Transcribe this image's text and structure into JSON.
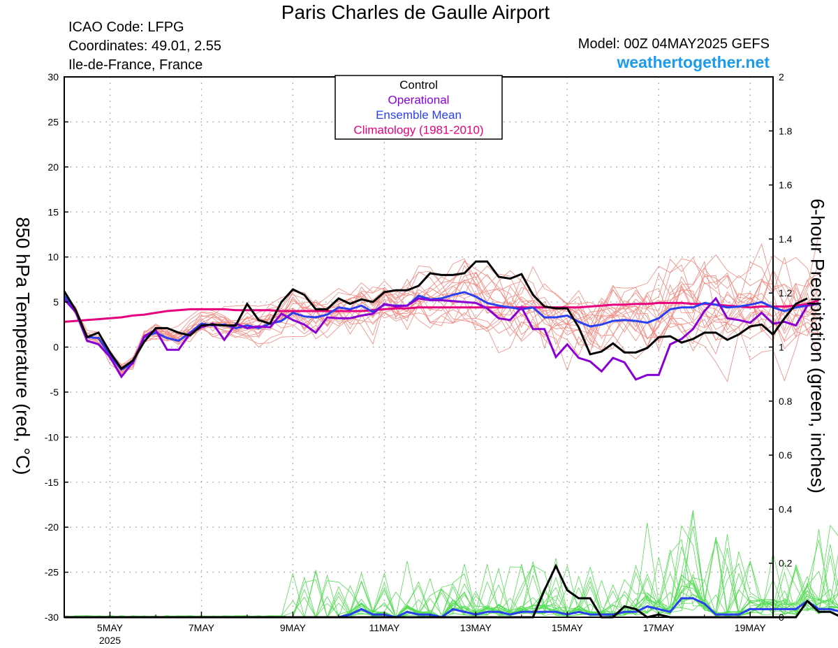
{
  "header": {
    "title": "Paris Charles de Gaulle Airport",
    "icao": "ICAO Code: LFPG",
    "coordinates": "Coordinates: 49.01, 2.55",
    "region": "Ile-de-France, France",
    "model": "Model: 00Z 04MAY2025 GEFS",
    "site": "weathertogether.net",
    "site_color": "#1a9bf0"
  },
  "chart_data": {
    "type": "line",
    "xlabel": "",
    "ylabel_left": "850 hPa Temperature (red, °C)",
    "ylabel_right": "6-hour Precipitation (green, inches)",
    "x_range": [
      0,
      62
    ],
    "x_unit": "6-hour steps from 00Z 04 May 2025",
    "ylim_left": [
      -30,
      30
    ],
    "ylim_right": [
      0,
      2
    ],
    "yticks_left": [
      "30",
      "25",
      "20",
      "15",
      "10",
      "5",
      "0",
      "-5",
      "-10",
      "-15",
      "-20",
      "-25",
      "-30"
    ],
    "yticks_right": [
      "2",
      "1.8",
      "1.6",
      "1.4",
      "1.2",
      "1",
      "0.8",
      "0.6",
      "0.4",
      "0.2",
      "0"
    ],
    "xticks": [
      {
        "label": "5MAY",
        "sub": "2025",
        "x": 4
      },
      {
        "label": "7MAY",
        "x": 12
      },
      {
        "label": "9MAY",
        "x": 20
      },
      {
        "label": "11MAY",
        "x": 28
      },
      {
        "label": "13MAY",
        "x": 36
      },
      {
        "label": "15MAY",
        "x": 44
      },
      {
        "label": "17MAY",
        "x": 52
      },
      {
        "label": "19MAY",
        "x": 60
      }
    ],
    "grid": true,
    "legend": {
      "position": "top-center",
      "entries": [
        {
          "name": "Control",
          "color": "#000000"
        },
        {
          "name": "Operational",
          "color": "#8a00d4"
        },
        {
          "name": "Ensemble Mean",
          "color": "#2a3ff0"
        },
        {
          "name": "Climatology (1981-2010)",
          "color": "#e5007e"
        }
      ]
    },
    "colors": {
      "control": "#000000",
      "operational": "#8a00d4",
      "mean": "#2a3ff0",
      "climatology": "#e5007e",
      "members_temp": "#f08a80",
      "members_precip": "#55dd55"
    },
    "series_temp": {
      "control": [
        6.2,
        4.1,
        1.1,
        1.6,
        -0.6,
        -2.4,
        -1.5,
        0.6,
        2.1,
        2.1,
        1.6,
        1.3,
        2.4,
        2.5,
        2.4,
        2.4,
        4.8,
        3.0,
        2.6,
        5.0,
        6.4,
        5.8,
        4.2,
        4.2,
        5.4,
        4.8,
        5.3,
        5.0,
        6.1,
        6.3,
        6.3,
        6.8,
        8.2,
        8.0,
        8.0,
        8.2,
        9.5,
        9.5,
        7.8,
        7.6,
        8.1,
        5.8,
        4.5,
        4.3,
        4.3,
        2.2,
        -0.8,
        -0.5,
        0.4,
        -0.6,
        -0.6,
        -0.1,
        1.1,
        1.2,
        0.5,
        0.9,
        1.6,
        1.6,
        0.8,
        1.4,
        2.3,
        2.5,
        1.4,
        3.2,
        4.8,
        5.4
      ],
      "operational": [
        5.3,
        3.9,
        0.7,
        0.3,
        -1.1,
        -3.3,
        -1.7,
        1.2,
        1.9,
        -0.3,
        -0.3,
        1.5,
        2.2,
        2.6,
        0.8,
        2.6,
        2.1,
        2.3,
        2.2,
        3.7,
        3.0,
        2.5,
        1.6,
        3.3,
        3.2,
        3.2,
        3.5,
        3.7,
        4.8,
        4.5,
        4.6,
        5.4,
        5.2,
        5.2,
        5.1,
        5.0,
        4.9,
        4.3,
        3.2,
        3.0,
        4.4,
        2.0,
        2.0,
        -1.1,
        0.3,
        -1.2,
        -1.6,
        -2.7,
        -1.2,
        -1.7,
        -3.6,
        -3.1,
        -3.1,
        0.3,
        0.9,
        2.0,
        4.0,
        5.4,
        3.2,
        3.0,
        2.7,
        3.8,
        2.6,
        2.8,
        2.4,
        4.6,
        4.9
      ],
      "mean": [
        5.7,
        4.0,
        1.1,
        1.0,
        -0.9,
        -2.5,
        -1.8,
        1.1,
        1.6,
        1.0,
        0.7,
        1.6,
        2.6,
        2.4,
        2.5,
        2.1,
        2.4,
        2.1,
        2.6,
        2.9,
        3.8,
        3.4,
        3.3,
        3.6,
        4.4,
        4.2,
        4.6,
        3.9,
        4.7,
        4.6,
        4.6,
        5.7,
        5.3,
        5.4,
        5.8,
        6.1,
        5.6,
        4.9,
        4.6,
        4.4,
        4.2,
        4.4,
        3.3,
        3.3,
        3.5,
        2.8,
        2.3,
        2.5,
        2.9,
        3.0,
        2.9,
        2.7,
        3.2,
        4.2,
        4.4,
        4.4,
        4.9,
        4.7,
        4.4,
        4.5,
        4.7,
        5.0,
        4.4,
        4.0,
        4.4,
        4.6,
        4.8
      ],
      "climatology": [
        2.8,
        2.9,
        3.0,
        3.1,
        3.2,
        3.3,
        3.5,
        3.6,
        3.8,
        4.0,
        4.1,
        4.2,
        4.2,
        4.2,
        4.2,
        4.1,
        4.1,
        4.1,
        4.1,
        4.0,
        4.0,
        4.0,
        4.0,
        4.0,
        4.0,
        4.0,
        4.0,
        4.1,
        4.2,
        4.3,
        4.3,
        4.4,
        4.4,
        4.4,
        4.4,
        4.4,
        4.4,
        4.4,
        4.4,
        4.4,
        4.4,
        4.4,
        4.4,
        4.4,
        4.4,
        4.4,
        4.5,
        4.6,
        4.7,
        4.7,
        4.8,
        4.8,
        4.9,
        4.9,
        4.9,
        4.8,
        4.8,
        4.7,
        4.6,
        4.5,
        4.4,
        4.5,
        4.5,
        4.5,
        4.6,
        4.8,
        5.2
      ]
    },
    "series_precip": {
      "control": [
        0,
        0,
        0,
        0,
        0,
        0,
        0,
        0,
        0,
        0,
        0,
        0,
        0,
        0,
        0,
        0,
        0,
        0,
        0,
        0,
        0,
        0,
        0,
        0,
        0,
        0,
        0,
        0,
        0,
        0,
        0,
        0,
        0,
        0,
        0,
        0,
        0,
        0,
        0,
        0,
        0,
        0,
        0.1,
        0.19,
        0.1,
        0.07,
        0.07,
        0,
        0,
        0.04,
        0.03,
        0,
        0.01,
        0,
        0,
        0,
        0,
        0,
        0,
        0,
        0,
        0,
        0,
        0,
        0,
        0.06,
        0.02,
        0.02,
        0,
        0
      ],
      "mean": [
        0,
        0,
        0,
        0,
        0,
        0,
        0,
        0,
        0,
        0,
        0,
        0,
        0,
        0,
        0,
        0,
        0,
        0,
        0,
        0,
        0,
        0,
        0,
        0,
        0,
        0.01,
        0.03,
        0.01,
        0.01,
        0,
        0.02,
        0.01,
        0.01,
        0,
        0.03,
        0.02,
        0.01,
        0.02,
        0.02,
        0.01,
        0.02,
        0.02,
        0.02,
        0.02,
        0.01,
        0.02,
        0.01,
        0.01,
        0.01,
        0.02,
        0.02,
        0.04,
        0.03,
        0.02,
        0.07,
        0.07,
        0.05,
        0.01,
        0.01,
        0.01,
        0.03,
        0.03,
        0.03,
        0.03,
        0.03,
        0.06,
        0.03,
        0.03,
        0.02
      ]
    }
  }
}
